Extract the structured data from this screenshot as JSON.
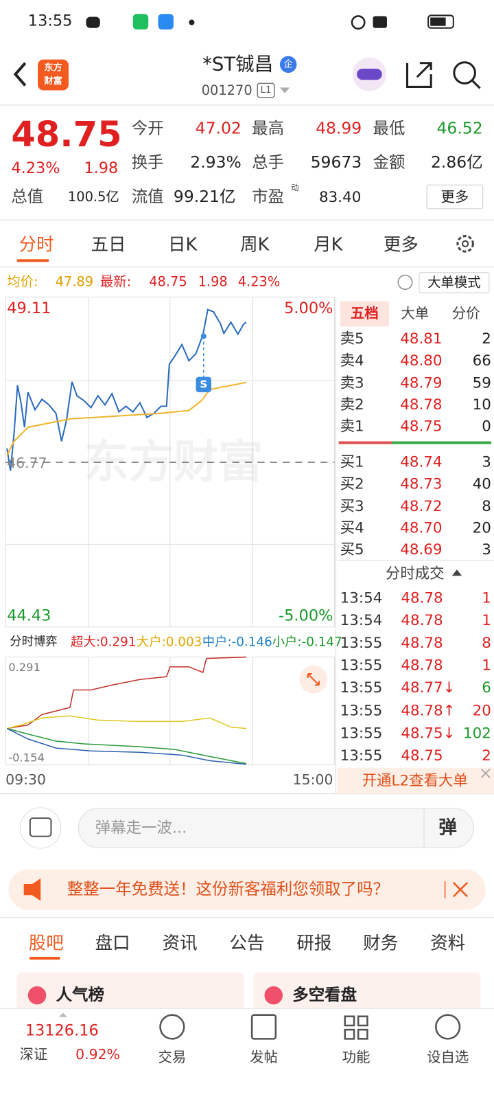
{
  "status": {
    "time": "13:55"
  },
  "header": {
    "logo_top": "东方",
    "logo_bottom": "财富",
    "title": "*ST铖昌",
    "badge": "企",
    "code": "001270",
    "level": "L1"
  },
  "quote": {
    "price": "48.75",
    "pct": "4.23%",
    "change": "1.98",
    "rows": [
      [
        {
          "label": "今开",
          "value": "47.02"
        },
        {
          "label": "最高",
          "value": "48.99"
        },
        {
          "label": "最低",
          "value": "46.52"
        }
      ],
      [
        {
          "label": "换手",
          "value": "2.93%"
        },
        {
          "label": "总手",
          "value": "59673"
        },
        {
          "label": "金额",
          "value": "2.86亿"
        }
      ]
    ],
    "cap": {
      "label": "总值",
      "value": "100.5亿"
    },
    "float": {
      "label": "流值",
      "value": "99.21亿"
    },
    "pe": {
      "label": "市盈",
      "sup": "动",
      "value": "83.40"
    },
    "more": "更多"
  },
  "tabs": [
    "分时",
    "五日",
    "日K",
    "周K",
    "月K",
    "更多"
  ],
  "info": {
    "avg_label": "均价:",
    "avg": "47.89",
    "last_label": "最新:",
    "last": "48.75",
    "change": "1.98",
    "pct": "4.23%",
    "mode": "大单模式"
  },
  "chart": {
    "high": "49.11",
    "high_pct": "5.00%",
    "base": "46.77",
    "low": "44.43",
    "low_pct": "-5.00%",
    "watermark": "东方财富",
    "marker": "S"
  },
  "flow": {
    "selector": "分时博弈",
    "items": [
      {
        "text": "超大:0.291",
        "color": "#e02020"
      },
      {
        "text": "大户:0.003",
        "color": "#e0a800"
      },
      {
        "text": "中户:-0.146",
        "color": "#1c7fd0"
      },
      {
        "text": "小户:-0.147",
        "color": "#1a9a2a"
      }
    ],
    "max": "0.291",
    "min": "-0.154",
    "start": "09:30",
    "end": "15:00"
  },
  "book": {
    "tabs": [
      "五档",
      "大单",
      "分价"
    ],
    "asks": [
      [
        "卖5",
        "48.81",
        "2"
      ],
      [
        "卖4",
        "48.80",
        "66"
      ],
      [
        "卖3",
        "48.79",
        "59"
      ],
      [
        "卖2",
        "48.78",
        "10"
      ],
      [
        "卖1",
        "48.75",
        "0"
      ]
    ],
    "bids": [
      [
        "买1",
        "48.74",
        "3"
      ],
      [
        "买2",
        "48.73",
        "40"
      ],
      [
        "买3",
        "48.72",
        "8"
      ],
      [
        "买4",
        "48.70",
        "20"
      ],
      [
        "买5",
        "48.69",
        "3"
      ]
    ],
    "trades_title": "分时成交",
    "trades": [
      {
        "time": "13:54",
        "price": "48.78",
        "vol": "1",
        "color": "#e02020"
      },
      {
        "time": "13:54",
        "price": "48.78",
        "vol": "1",
        "color": "#e02020"
      },
      {
        "time": "13:55",
        "price": "48.78",
        "vol": "8",
        "color": "#e02020"
      },
      {
        "time": "13:55",
        "price": "48.78",
        "vol": "1",
        "color": "#e02020"
      },
      {
        "time": "13:55",
        "price": "48.77↓",
        "vol": "6",
        "color": "#1a9a2a"
      },
      {
        "time": "13:55",
        "price": "48.78↑",
        "vol": "20",
        "color": "#e02020"
      },
      {
        "time": "13:55",
        "price": "48.75↓",
        "vol": "102",
        "color": "#1a9a2a"
      },
      {
        "time": "13:55",
        "price": "48.75",
        "vol": "2",
        "color": "#e02020"
      }
    ],
    "l2": "开通L2查看大单"
  },
  "comment": {
    "placeholder": "弹幕走一波...",
    "danmu": "弹"
  },
  "banner": {
    "text": "整整一年免费送！这份新客福利您领取了吗？"
  },
  "subtabs": [
    "股吧",
    "盘口",
    "资讯",
    "公告",
    "研报",
    "财务",
    "资料"
  ],
  "cards": [
    "人气榜",
    "多空看盘"
  ],
  "bottom": {
    "index_value": "13126.16",
    "index_name": "深证",
    "index_pct": "0.92%",
    "nav": [
      "交易",
      "发帖",
      "功能",
      "设自选"
    ]
  }
}
